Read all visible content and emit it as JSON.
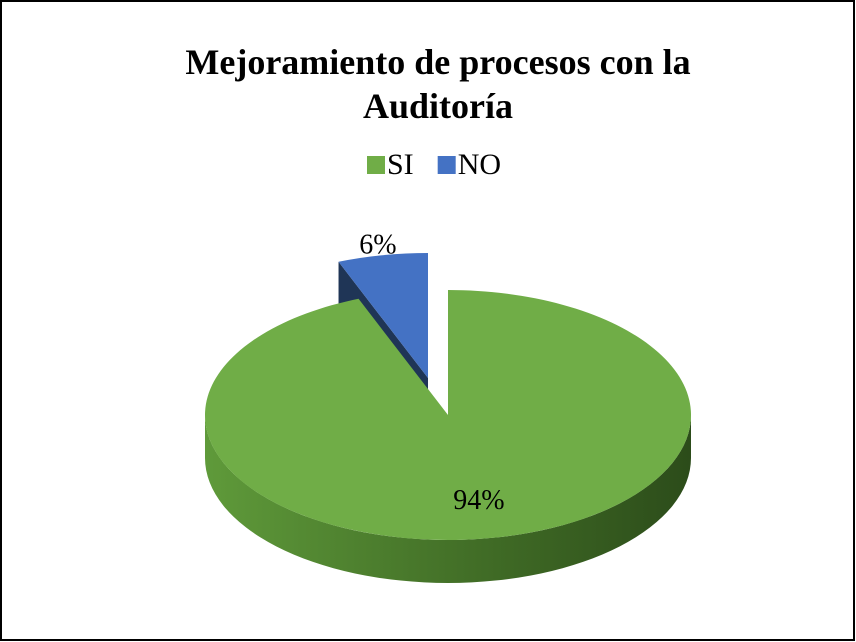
{
  "chart_data": {
    "type": "pie",
    "title": "Mejoramiento de procesos con la Auditoría",
    "categories": [
      "SI",
      "NO"
    ],
    "values": [
      94,
      6
    ],
    "value_labels": [
      "94%",
      "6%"
    ],
    "colors": [
      "#70ad47",
      "#4472c4"
    ],
    "legend": "top"
  }
}
